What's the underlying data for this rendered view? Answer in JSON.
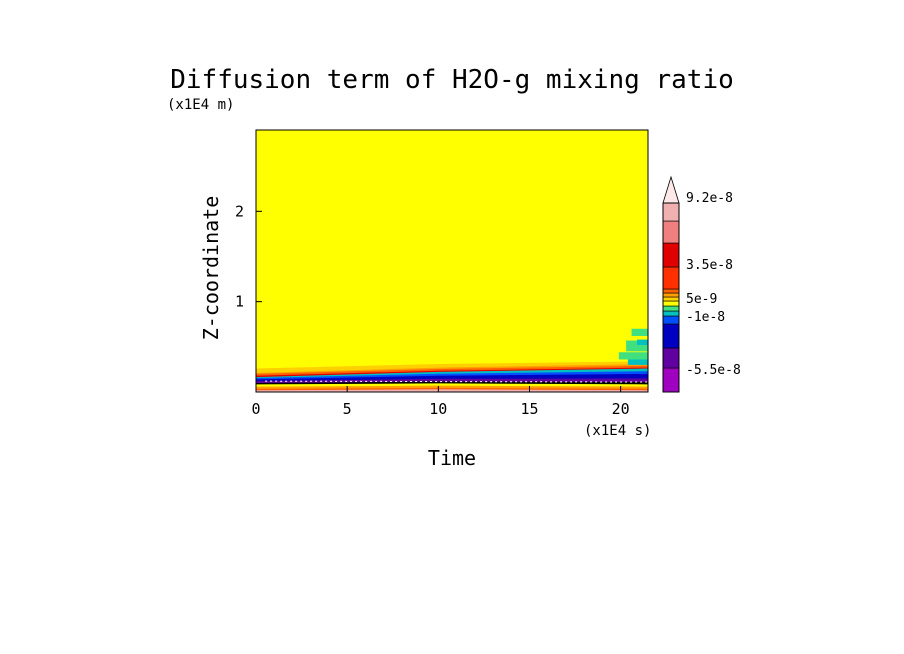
{
  "chart_data": {
    "type": "heatmap",
    "title": "Diffusion term of H2O-g mixing ratio",
    "xlabel": "Time",
    "ylabel": "Z-coordinate",
    "x_unit": "(x1E4 s)",
    "y_unit": "(x1E4 m)",
    "xlim": [
      0,
      21.5
    ],
    "ylim": [
      0,
      2.9
    ],
    "x_ticks": [
      "0",
      "5",
      "10",
      "15",
      "20"
    ],
    "y_ticks": [
      "1",
      "2"
    ],
    "background_level_color": "#ffff00",
    "colorbar": {
      "levels_colors": [
        "#a000c0",
        "#6000a0",
        "#0000c0",
        "#0050ff",
        "#00c0c0",
        "#40e080",
        "#ffff00",
        "#ffd000",
        "#ffa000",
        "#ff6000",
        "#ff3000",
        "#e00000",
        "#f08080",
        "#f0b0b0",
        "#ffe8e8"
      ],
      "labels": [
        "-5.5e-8",
        "-1e-8",
        "5e-9",
        "3.5e-8",
        "9.2e-8"
      ]
    }
  }
}
